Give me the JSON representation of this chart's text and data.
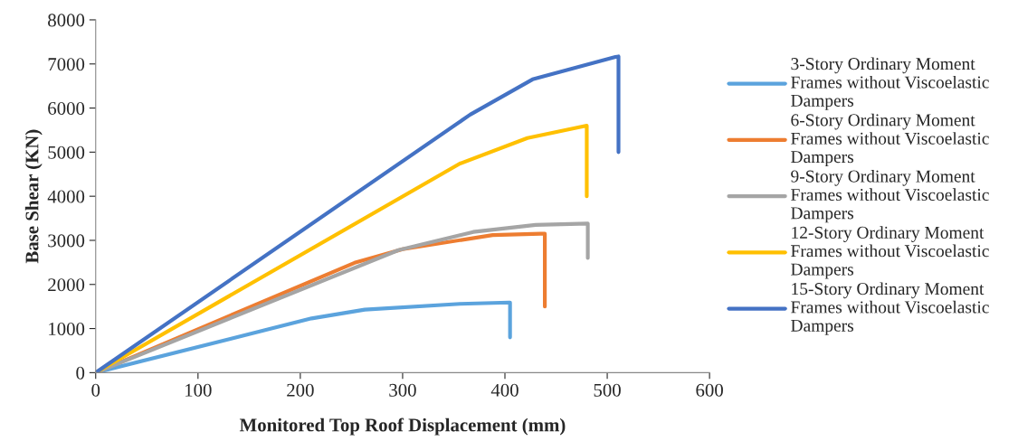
{
  "chart_data": {
    "type": "line",
    "xlabel": "Monitored Top Roof Displacement (mm)",
    "ylabel": "Base Shear (KN)",
    "xlim": [
      0,
      600
    ],
    "xticks": [
      0,
      100,
      200,
      300,
      400,
      500,
      600
    ],
    "ylim": [
      0,
      8000
    ],
    "yticks": [
      0,
      1000,
      2000,
      3000,
      4000,
      5000,
      6000,
      7000,
      8000
    ],
    "grid": false,
    "legend": "right",
    "marker": "none",
    "line_style": "solid",
    "series": [
      {
        "name": "3-Story Ordinary Moment\nFrames without Viscoelastic\nDampers",
        "color": "#5ba3dd",
        "x": [
          0,
          211,
          263,
          356,
          404,
          405,
          405
        ],
        "values": [
          0,
          1230,
          1430,
          1560,
          1590,
          1590,
          800
        ]
      },
      {
        "name": "6-Story Ordinary Moment\nFrames without Viscoelastic\nDampers",
        "color": "#ed7d31",
        "x": [
          0,
          253,
          300,
          388,
          435,
          439,
          439
        ],
        "values": [
          0,
          2490,
          2800,
          3120,
          3150,
          3150,
          1500
        ]
      },
      {
        "name": "9-Story Ordinary Moment\nFrames without Viscoelastic\nDampers",
        "color": "#a5a5a5",
        "x": [
          0,
          296,
          369,
          430,
          481,
          481
        ],
        "values": [
          0,
          2780,
          3190,
          3350,
          3380,
          2600
        ]
      },
      {
        "name": "12-Story Ordinary Moment\nFrames without Viscoelastic\nDampers",
        "color": "#ffc000",
        "x": [
          0,
          356,
          422,
          480,
          480
        ],
        "values": [
          0,
          4740,
          5320,
          5600,
          4000
        ]
      },
      {
        "name": "15-Story Ordinary Moment\nFrames without Viscoelastic\nDampers",
        "color": "#4472c4",
        "x": [
          0,
          366,
          427,
          508,
          511,
          511
        ],
        "values": [
          0,
          5850,
          6650,
          7160,
          7170,
          5000
        ]
      }
    ]
  }
}
